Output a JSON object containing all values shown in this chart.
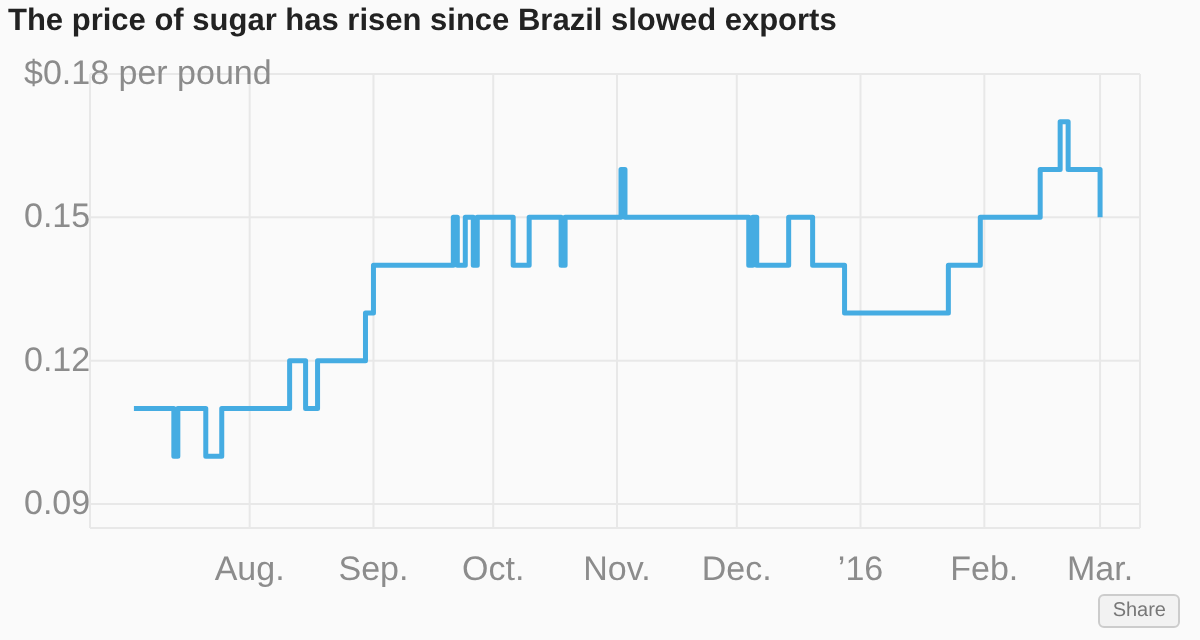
{
  "chart_data": {
    "type": "step",
    "title": "The price of sugar has risen since Brazil slowed exports",
    "x": [
      "2015-07-03",
      "2015-07-13",
      "2015-07-14",
      "2015-07-21",
      "2015-07-25",
      "2015-08-11",
      "2015-08-15",
      "2015-08-18",
      "2015-08-30",
      "2015-09-01",
      "2015-09-21",
      "2015-09-22",
      "2015-09-24",
      "2015-09-26",
      "2015-09-27",
      "2015-10-06",
      "2015-10-10",
      "2015-10-18",
      "2015-10-19",
      "2015-11-02",
      "2015-11-03",
      "2015-12-04",
      "2015-12-05",
      "2015-12-06",
      "2015-12-14",
      "2015-12-20",
      "2015-12-28",
      "2016-01-23",
      "2016-01-31",
      "2016-02-15",
      "2016-02-20",
      "2016-02-22",
      "2016-03-01"
    ],
    "series": [
      {
        "color": "#45ace2",
        "values": [
          0.11,
          0.1,
          0.11,
          0.1,
          0.11,
          0.12,
          0.11,
          0.12,
          0.13,
          0.14,
          0.15,
          0.14,
          0.15,
          0.14,
          0.15,
          0.14,
          0.15,
          0.14,
          0.15,
          0.16,
          0.15,
          0.14,
          0.15,
          0.14,
          0.15,
          0.14,
          0.13,
          0.14,
          0.15,
          0.16,
          0.17,
          0.16,
          0.15
        ]
      }
    ],
    "xlim": [
      "2015-06-22",
      "2016-03-11"
    ],
    "xticks": [
      {
        "value": "2015-08-01",
        "label": "Aug."
      },
      {
        "value": "2015-09-01",
        "label": "Sep."
      },
      {
        "value": "2015-10-01",
        "label": "Oct."
      },
      {
        "value": "2015-11-01",
        "label": "Nov."
      },
      {
        "value": "2015-12-01",
        "label": "Dec."
      },
      {
        "value": "2016-01-01",
        "label": "’16"
      },
      {
        "value": "2016-02-01",
        "label": "Feb."
      },
      {
        "value": "2016-03-01",
        "label": "Mar."
      }
    ],
    "ylim": [
      0.085,
      0.18
    ],
    "yticks": [
      0.09,
      0.12,
      0.15,
      {
        "value": 0.18,
        "label": "$0.18 per pound"
      }
    ],
    "grid": true,
    "legend": false,
    "marker": "none",
    "line_style": "solid",
    "annotations": [
      "Share"
    ]
  }
}
